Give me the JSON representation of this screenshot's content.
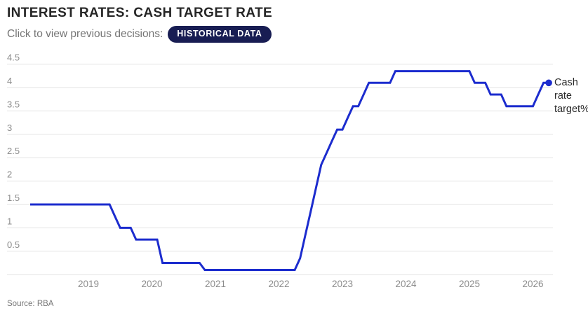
{
  "header": {
    "title": "INTEREST RATES: CASH TARGET RATE",
    "subtitle_prefix": "Click to view previous decisions:",
    "badge_label": "HISTORICAL DATA"
  },
  "annotation": {
    "label": "Cash rate target%"
  },
  "source": {
    "text": "Source: RBA"
  },
  "colors": {
    "line": "#1c2cce",
    "end_dot": "#1c2cce",
    "badge_bg": "#181d53",
    "badge_text": "#ffffff",
    "grid": "#e3e3e3",
    "tick_label": "#8c8c8c",
    "title": "#262626",
    "subtitle": "#757575",
    "annotation_text": "#2b2b2b",
    "source_text": "#767676"
  },
  "chart_data": {
    "type": "line",
    "title": "INTEREST RATES: CASH TARGET RATE",
    "unit": "%",
    "grid": true,
    "legend_position": "right-of-line-end",
    "ylim": [
      0,
      4.5
    ],
    "x_range": [
      "2018-02",
      "2026-04"
    ],
    "y_ticks": [
      {
        "v": 4.5,
        "t": "4.5"
      },
      {
        "v": 4,
        "t": "4"
      },
      {
        "v": 3.5,
        "t": "3.5"
      },
      {
        "v": 3,
        "t": "3"
      },
      {
        "v": 2.5,
        "t": "2.5"
      },
      {
        "v": 2,
        "t": "2"
      },
      {
        "v": 1.5,
        "t": "1.5"
      },
      {
        "v": 1,
        "t": "1"
      },
      {
        "v": 0.5,
        "t": "0.5"
      },
      {
        "v": 0,
        "t": ""
      }
    ],
    "x_ticks": [
      "2019",
      "2020",
      "2021",
      "2022",
      "2023",
      "2024",
      "2025",
      "2026"
    ],
    "series": [
      {
        "name": "Cash rate target%",
        "points": [
          [
            "2018-02",
            1.5
          ],
          [
            "2019-05",
            1.5
          ],
          [
            "2019-06",
            1.25
          ],
          [
            "2019-07",
            1.0
          ],
          [
            "2019-09",
            1.0
          ],
          [
            "2019-10",
            0.75
          ],
          [
            "2020-02",
            0.75
          ],
          [
            "2020-03",
            0.25
          ],
          [
            "2020-10",
            0.25
          ],
          [
            "2020-11",
            0.1
          ],
          [
            "2022-04",
            0.1
          ],
          [
            "2022-05",
            0.35
          ],
          [
            "2022-06",
            0.85
          ],
          [
            "2022-07",
            1.35
          ],
          [
            "2022-08",
            1.85
          ],
          [
            "2022-09",
            2.35
          ],
          [
            "2022-10",
            2.6
          ],
          [
            "2022-11",
            2.85
          ],
          [
            "2022-12",
            3.1
          ],
          [
            "2023-01",
            3.1
          ],
          [
            "2023-02",
            3.35
          ],
          [
            "2023-03",
            3.6
          ],
          [
            "2023-04",
            3.6
          ],
          [
            "2023-05",
            3.85
          ],
          [
            "2023-06",
            4.1
          ],
          [
            "2023-10",
            4.1
          ],
          [
            "2023-11",
            4.35
          ],
          [
            "2025-01",
            4.35
          ],
          [
            "2025-02",
            4.1
          ],
          [
            "2025-04",
            4.1
          ],
          [
            "2025-05",
            3.85
          ],
          [
            "2025-07",
            3.85
          ],
          [
            "2025-08",
            3.6
          ],
          [
            "2026-01",
            3.6
          ],
          [
            "2026-02",
            3.85
          ],
          [
            "2026-03",
            4.1
          ],
          [
            "2026-04",
            4.1
          ]
        ]
      }
    ]
  }
}
